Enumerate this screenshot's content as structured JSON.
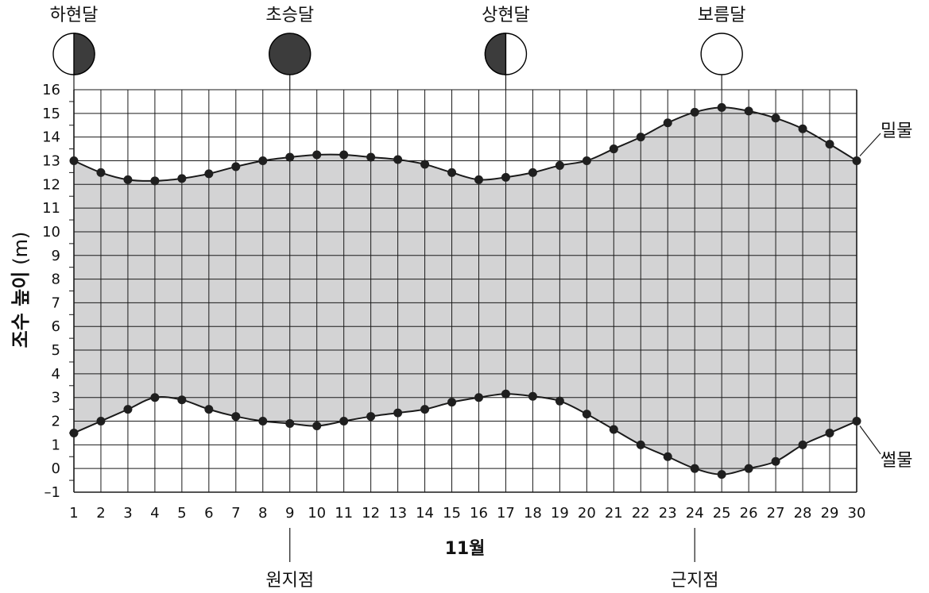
{
  "chart_data": {
    "type": "area",
    "xlabel": "11월",
    "ylabel": "조수 높이",
    "ylabel_unit": "(m)",
    "xlim": [
      1,
      30
    ],
    "ylim": [
      -1,
      16
    ],
    "grid": true,
    "x": [
      1,
      2,
      3,
      4,
      5,
      6,
      7,
      8,
      9,
      10,
      11,
      12,
      13,
      14,
      15,
      16,
      17,
      18,
      19,
      20,
      21,
      22,
      23,
      24,
      25,
      26,
      27,
      28,
      29,
      30
    ],
    "x_tick_labels": [
      "1",
      "2",
      "3",
      "4",
      "5",
      "6",
      "7",
      "8",
      "9",
      "10",
      "11",
      "12",
      "13",
      "14",
      "15",
      "16",
      "17",
      "18",
      "19",
      "20",
      "21",
      "22",
      "23",
      "24",
      "25",
      "26",
      "27",
      "28",
      "29",
      "30"
    ],
    "y_tick_labels": [
      "16",
      "15",
      "14",
      "13",
      "12",
      "11",
      "10",
      "9",
      "8",
      "7",
      "6",
      "5",
      "4",
      "3",
      "2",
      "1",
      "0",
      "–1"
    ],
    "series": [
      {
        "name": "밀물",
        "values": [
          13,
          12.5,
          12.2,
          12.15,
          12.25,
          12.45,
          12.75,
          13,
          13.15,
          13.25,
          13.25,
          13.15,
          13.05,
          12.85,
          12.5,
          12.2,
          12.3,
          12.5,
          12.8,
          13,
          13.5,
          14,
          14.6,
          15.05,
          15.25,
          15.1,
          14.8,
          14.35,
          13.7,
          13
        ]
      },
      {
        "name": "썰물",
        "values": [
          1.5,
          2,
          2.5,
          3,
          2.9,
          2.5,
          2.2,
          2,
          1.9,
          1.8,
          2,
          2.2,
          2.35,
          2.5,
          2.8,
          3,
          3.15,
          3.05,
          2.85,
          2.3,
          1.65,
          1,
          0.5,
          0,
          -0.25,
          0,
          0.3,
          1,
          1.5,
          2
        ]
      }
    ],
    "phases": [
      {
        "label": "하현달",
        "day": 1,
        "kind": "right-dark"
      },
      {
        "label": "초승달",
        "day": 9,
        "kind": "full-dark"
      },
      {
        "label": "상현달",
        "day": 17,
        "kind": "left-dark"
      },
      {
        "label": "보름달",
        "day": 25,
        "kind": "full-light"
      }
    ],
    "annotations": [
      {
        "label": "원지점",
        "day": 9
      },
      {
        "label": "근지점",
        "day": 24
      }
    ],
    "colors": {
      "fill": "#d3d3d4",
      "line": "#1a1a1a",
      "marker": "#1f1f1f",
      "grid": "#1a1a1a",
      "moon_dark": "#3c3c3c"
    }
  }
}
